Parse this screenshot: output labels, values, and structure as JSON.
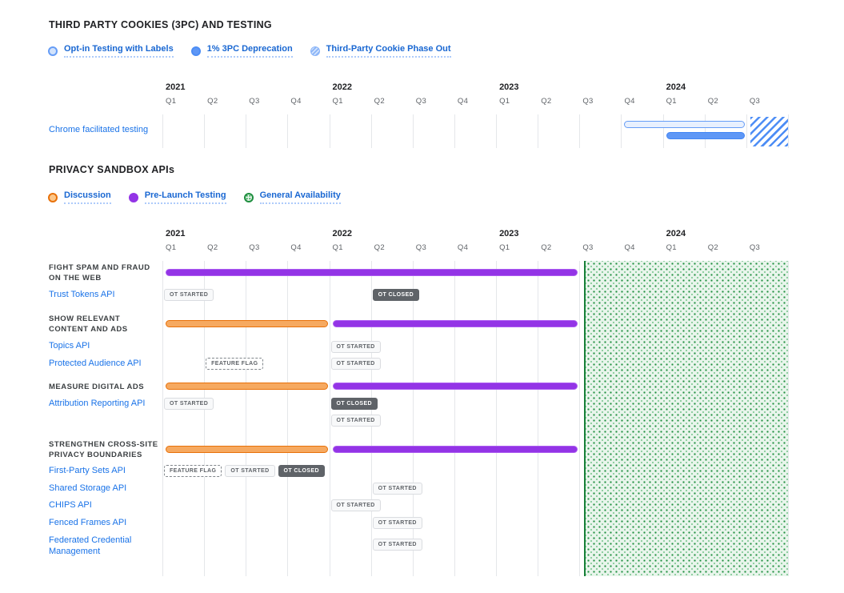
{
  "colors": {
    "link_blue": "#1A73E8",
    "legend_label_blue": "#1967D2",
    "title_text": "#202124",
    "muted_text": "#5F6368",
    "group_text": "#3C4043",
    "purple_prelaunch": "#9334E6",
    "orange_discussion": "#E8710A",
    "blue_deprecation": "#4285F4",
    "blue_optin_fill": "#D2E3FC",
    "green_ga": "#188038",
    "badge_dark_bg": "#5F6368",
    "grid_line": "#E4E7EA"
  },
  "chart_data": [
    {
      "type": "timeline",
      "title": "THIRD PARTY COOKIES (3PC) AND TESTING",
      "legend": [
        {
          "label": "Opt-in Testing with Labels",
          "key": "opt-in"
        },
        {
          "label": "1% 3PC Deprecation",
          "key": "deprecation"
        },
        {
          "label": "Third-Party Cookie Phase Out",
          "key": "phase-out"
        }
      ],
      "years": [
        "2021",
        "2022",
        "2023",
        "2024"
      ],
      "quarter_labels": [
        "Q1",
        "Q2",
        "Q3",
        "Q4",
        "Q1",
        "Q2",
        "Q3",
        "Q4",
        "Q1",
        "Q2",
        "Q3",
        "Q4",
        "Q1",
        "Q2",
        "Q3"
      ],
      "x_axis_range": [
        "2021 Q1",
        "2024 Q3"
      ],
      "grid": true,
      "legend_position": "top",
      "rows": [
        {
          "kind": "api",
          "label": "Chrome facilitated testing",
          "bars": [
            {
              "phase": "Opt-in Testing with Labels",
              "key": "opt-in",
              "start": "2023 Q4",
              "end": "2024 Q3"
            },
            {
              "phase": "1% 3PC Deprecation",
              "key": "deprecation",
              "start": "2024 Q1",
              "end": "2024 Q3"
            }
          ]
        }
      ],
      "region": {
        "phase": "Third-Party Cookie Phase Out",
        "key": "phase-out",
        "start": "2024 Q3",
        "end": "end-of-axis"
      }
    },
    {
      "type": "timeline",
      "title": "PRIVACY SANDBOX APIs",
      "legend": [
        {
          "label": "Discussion",
          "key": "discussion"
        },
        {
          "label": "Pre-Launch Testing",
          "key": "prelaunch"
        },
        {
          "label": "General Availability",
          "key": "ga"
        }
      ],
      "years": [
        "2021",
        "2022",
        "2023",
        "2024"
      ],
      "quarter_labels": [
        "Q1",
        "Q2",
        "Q3",
        "Q4",
        "Q1",
        "Q2",
        "Q3",
        "Q4",
        "Q1",
        "Q2",
        "Q3",
        "Q4",
        "Q1",
        "Q2",
        "Q3"
      ],
      "x_axis_range": [
        "2021 Q1",
        "2024 Q3"
      ],
      "grid": true,
      "legend_position": "top",
      "region": {
        "phase": "General Availability",
        "key": "ga",
        "start": "2023 Q3",
        "end": "end-of-axis"
      },
      "rows": [
        {
          "kind": "group",
          "label": "FIGHT SPAM AND FRAUD\nON THE WEB",
          "bars": [
            {
              "phase": "Pre-Launch Testing",
              "key": "prelaunch",
              "start": "2021 Q1",
              "end": "2023 Q3"
            }
          ]
        },
        {
          "kind": "api",
          "label": "Trust Tokens API",
          "badges": [
            {
              "text": "OT STARTED",
              "variant": "light",
              "q": "2021 Q1"
            },
            {
              "text": "OT CLOSED",
              "variant": "dark",
              "q": "2022 Q2"
            }
          ]
        },
        {
          "kind": "group",
          "label": "SHOW RELEVANT\nCONTENT AND ADS",
          "bars": [
            {
              "phase": "Discussion",
              "key": "discussion",
              "start": "2021 Q1",
              "end": "2022 Q1"
            },
            {
              "phase": "Pre-Launch Testing",
              "key": "prelaunch",
              "start": "2022 Q1",
              "end": "2023 Q3"
            }
          ]
        },
        {
          "kind": "api",
          "label": "Topics API",
          "badges": [
            {
              "text": "OT STARTED",
              "variant": "light",
              "q": "2022 Q1"
            }
          ]
        },
        {
          "kind": "api",
          "label": "Protected Audience API",
          "badges": [
            {
              "text": "FEATURE FLAG",
              "variant": "dashed",
              "q": "2021 Q2"
            },
            {
              "text": "OT STARTED",
              "variant": "light",
              "q": "2022 Q1"
            }
          ]
        },
        {
          "kind": "group",
          "label": "MEASURE DIGITAL ADS",
          "bars": [
            {
              "phase": "Discussion",
              "key": "discussion",
              "start": "2021 Q1",
              "end": "2022 Q1"
            },
            {
              "phase": "Pre-Launch Testing",
              "key": "prelaunch",
              "start": "2022 Q1",
              "end": "2023 Q3"
            }
          ]
        },
        {
          "kind": "api",
          "label": "Attribution Reporting API",
          "badges": [
            {
              "text": "OT STARTED",
              "variant": "light",
              "q": "2021 Q1"
            },
            {
              "text": "OT CLOSED",
              "variant": "dark",
              "q": "2022 Q1"
            }
          ]
        },
        {
          "kind": "badges",
          "label": "",
          "badges": [
            {
              "text": "OT STARTED",
              "variant": "light",
              "q": "2022 Q1"
            }
          ]
        },
        {
          "kind": "group",
          "label": "STRENGTHEN CROSS-SITE\nPRIVACY BOUNDARIES",
          "bars": [
            {
              "phase": "Discussion",
              "key": "discussion",
              "start": "2021 Q1",
              "end": "2022 Q1"
            },
            {
              "phase": "Pre-Launch Testing",
              "key": "prelaunch",
              "start": "2022 Q1",
              "end": "2023 Q3"
            }
          ]
        },
        {
          "kind": "api",
          "label": "First-Party Sets API",
          "badges": [
            {
              "text": "FEATURE FLAG",
              "variant": "dashed",
              "q": "2021 Q1"
            },
            {
              "text": "OT STARTED",
              "variant": "light",
              "q": "2021 Q1"
            },
            {
              "text": "OT CLOSED",
              "variant": "dark",
              "q": "2021 Q1"
            }
          ]
        },
        {
          "kind": "api",
          "label": "Shared Storage API",
          "badges": [
            {
              "text": "OT STARTED",
              "variant": "light",
              "q": "2022 Q2"
            }
          ]
        },
        {
          "kind": "api",
          "label": "CHIPS API",
          "badges": [
            {
              "text": "OT STARTED",
              "variant": "light",
              "q": "2022 Q1"
            }
          ]
        },
        {
          "kind": "api",
          "label": "Fenced Frames API",
          "badges": [
            {
              "text": "OT STARTED",
              "variant": "light",
              "q": "2022 Q2"
            }
          ]
        },
        {
          "kind": "api",
          "label": "Federated Credential\nManagement",
          "badges": [
            {
              "text": "OT STARTED",
              "variant": "light",
              "q": "2022 Q2"
            }
          ]
        }
      ]
    }
  ]
}
